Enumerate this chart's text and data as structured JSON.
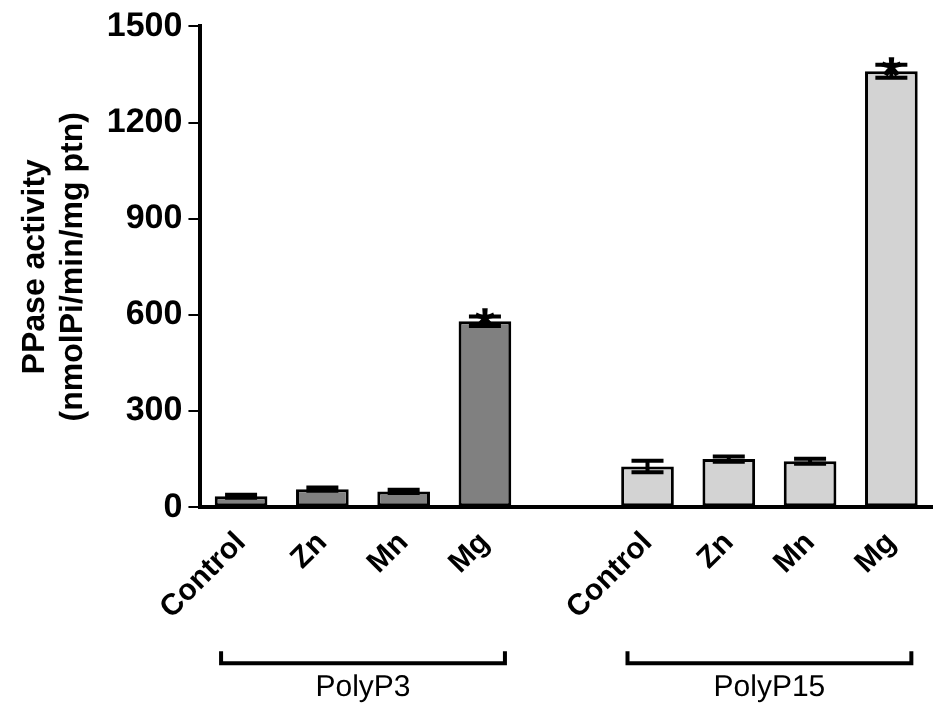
{
  "chart_data": {
    "type": "bar",
    "ylabel": "PPase activity\n(nmolPi/min/mg ptn)",
    "categories": [
      "Control",
      "Zn",
      "Mn",
      "Mg",
      null,
      "Control",
      "Zn",
      "Mn",
      "Mg"
    ],
    "values": [
      34,
      56,
      49,
      580,
      null,
      127,
      150,
      143,
      1360
    ],
    "errors": [
      5,
      5,
      5,
      15,
      null,
      18,
      8,
      8,
      20
    ],
    "colors": [
      "#808080",
      "#808080",
      "#808080",
      "#808080",
      "#808080",
      "#d3d3d3",
      "#d3d3d3",
      "#d3d3d3",
      "#d3d3d3"
    ],
    "ylim": [
      0,
      1500
    ],
    "yticks": [
      0,
      300,
      600,
      900,
      1200,
      1500
    ],
    "annotations": [
      "*",
      "*",
      "PolyP3",
      "PolyP15"
    ],
    "grid": false,
    "legend": false
  }
}
